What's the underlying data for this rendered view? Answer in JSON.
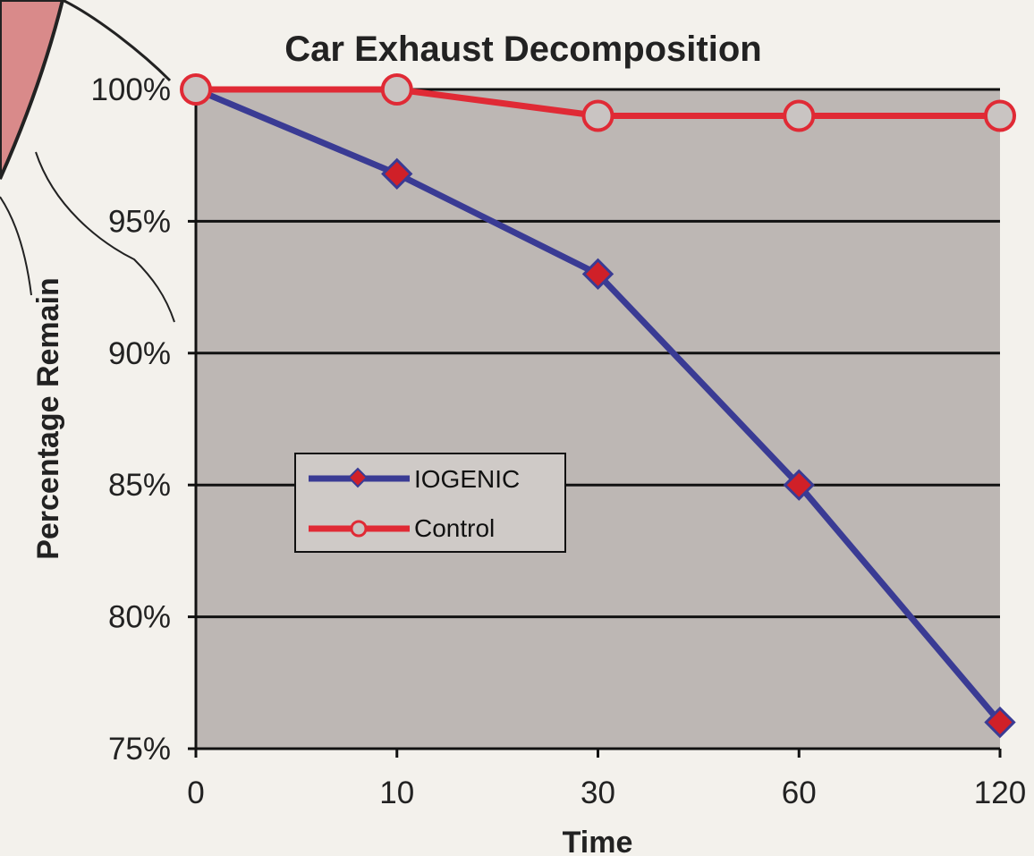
{
  "chart_data": {
    "type": "line",
    "title": "Car Exhaust Decomposition",
    "xlabel": "Time",
    "ylabel": "Percentage Remain",
    "categories": [
      "0",
      "10",
      "30",
      "60",
      "120"
    ],
    "y_tick_labels": [
      "100%",
      "95%",
      "90%",
      "85%",
      "80%",
      "75%"
    ],
    "ylim": [
      75,
      100
    ],
    "y_unit": "%",
    "grid": true,
    "legend_position": "center-left",
    "series": [
      {
        "name": "IOGENIC",
        "values": [
          100,
          96.8,
          93.0,
          85.0,
          76.0
        ],
        "color": "#3a3b94",
        "marker": "diamond",
        "marker_color": "#d02028"
      },
      {
        "name": "Control",
        "values": [
          100,
          100,
          99.0,
          99.0,
          99.0
        ],
        "color": "#e02a35",
        "marker": "circle",
        "marker_color": "#c9c4c2"
      }
    ],
    "plot_background": "#bdb7b4"
  }
}
